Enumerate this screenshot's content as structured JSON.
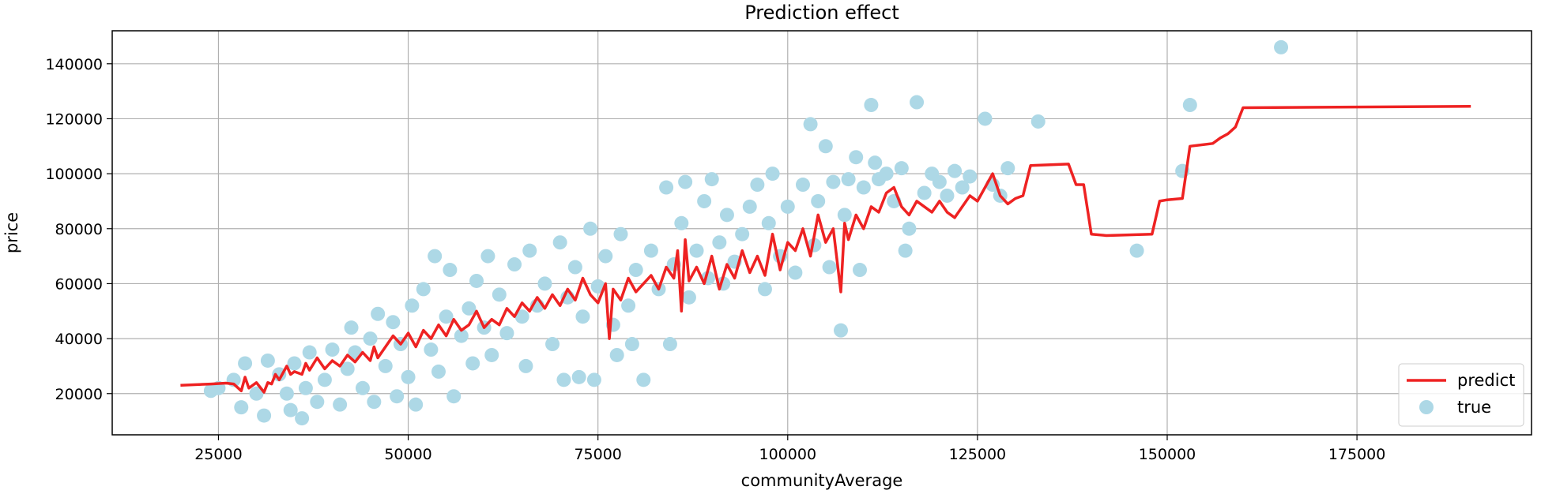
{
  "chart_data": {
    "type": "scatter",
    "title": "Prediction effect",
    "xlabel": "communityAverage",
    "ylabel": "price",
    "xlim": [
      11000,
      198000
    ],
    "ylim": [
      5000,
      152000
    ],
    "xticks": [
      25000,
      50000,
      75000,
      100000,
      125000,
      150000,
      175000
    ],
    "yticks": [
      20000,
      40000,
      60000,
      80000,
      100000,
      120000,
      140000
    ],
    "grid": true,
    "legend_position": "lower-right",
    "series": [
      {
        "name": "predict",
        "kind": "line",
        "color": "#ee2222",
        "points": [
          [
            20000,
            23000
          ],
          [
            24000,
            23500
          ],
          [
            26000,
            23800
          ],
          [
            27000,
            23500
          ],
          [
            28000,
            21000
          ],
          [
            28500,
            26000
          ],
          [
            29000,
            22000
          ],
          [
            30000,
            24000
          ],
          [
            31000,
            20500
          ],
          [
            31500,
            24000
          ],
          [
            32000,
            23500
          ],
          [
            32500,
            27000
          ],
          [
            33000,
            25000
          ],
          [
            34000,
            30000
          ],
          [
            34500,
            27000
          ],
          [
            35000,
            28000
          ],
          [
            36000,
            27000
          ],
          [
            36500,
            31000
          ],
          [
            37000,
            28500
          ],
          [
            38000,
            33000
          ],
          [
            39000,
            29000
          ],
          [
            40000,
            32000
          ],
          [
            41000,
            30000
          ],
          [
            42000,
            34000
          ],
          [
            43000,
            31500
          ],
          [
            44000,
            35000
          ],
          [
            45000,
            32000
          ],
          [
            45500,
            37000
          ],
          [
            46000,
            33000
          ],
          [
            47000,
            37000
          ],
          [
            48000,
            41000
          ],
          [
            49000,
            38000
          ],
          [
            50000,
            42000
          ],
          [
            51000,
            37000
          ],
          [
            52000,
            43000
          ],
          [
            53000,
            40000
          ],
          [
            54000,
            45000
          ],
          [
            55000,
            41000
          ],
          [
            56000,
            47000
          ],
          [
            57000,
            43000
          ],
          [
            58000,
            45000
          ],
          [
            59000,
            50000
          ],
          [
            60000,
            44000
          ],
          [
            61000,
            47000
          ],
          [
            62000,
            45000
          ],
          [
            63000,
            51000
          ],
          [
            64000,
            48000
          ],
          [
            65000,
            53000
          ],
          [
            66000,
            50000
          ],
          [
            67000,
            55000
          ],
          [
            68000,
            51000
          ],
          [
            69000,
            56000
          ],
          [
            70000,
            52000
          ],
          [
            71000,
            58000
          ],
          [
            72000,
            54000
          ],
          [
            73000,
            62000
          ],
          [
            74000,
            56000
          ],
          [
            75000,
            53000
          ],
          [
            76000,
            60000
          ],
          [
            76500,
            40000
          ],
          [
            77000,
            58000
          ],
          [
            78000,
            54000
          ],
          [
            79000,
            62000
          ],
          [
            80000,
            57000
          ],
          [
            81000,
            60000
          ],
          [
            82000,
            63000
          ],
          [
            83000,
            58000
          ],
          [
            84000,
            66000
          ],
          [
            85000,
            62000
          ],
          [
            85500,
            72000
          ],
          [
            86000,
            50000
          ],
          [
            86500,
            76000
          ],
          [
            87000,
            61000
          ],
          [
            88000,
            66000
          ],
          [
            89000,
            60000
          ],
          [
            90000,
            70000
          ],
          [
            91000,
            58000
          ],
          [
            92000,
            67000
          ],
          [
            93000,
            62000
          ],
          [
            94000,
            72000
          ],
          [
            95000,
            64000
          ],
          [
            96000,
            70000
          ],
          [
            97000,
            63000
          ],
          [
            98000,
            78000
          ],
          [
            99000,
            65000
          ],
          [
            100000,
            75000
          ],
          [
            101000,
            72000
          ],
          [
            102000,
            80000
          ],
          [
            103000,
            70000
          ],
          [
            104000,
            85000
          ],
          [
            105000,
            75000
          ],
          [
            106000,
            80000
          ],
          [
            107000,
            57000
          ],
          [
            107500,
            82000
          ],
          [
            108000,
            76000
          ],
          [
            109000,
            85000
          ],
          [
            110000,
            80000
          ],
          [
            111000,
            88000
          ],
          [
            112000,
            86000
          ],
          [
            113000,
            93000
          ],
          [
            114000,
            95000
          ],
          [
            115000,
            88000
          ],
          [
            116000,
            85000
          ],
          [
            117000,
            90000
          ],
          [
            118000,
            88000
          ],
          [
            119000,
            86000
          ],
          [
            120000,
            90000
          ],
          [
            121000,
            86000
          ],
          [
            122000,
            84000
          ],
          [
            123000,
            88000
          ],
          [
            124000,
            92000
          ],
          [
            125000,
            90000
          ],
          [
            126000,
            95000
          ],
          [
            127000,
            100000
          ],
          [
            128000,
            92000
          ],
          [
            129000,
            89000
          ],
          [
            130000,
            91000
          ],
          [
            131000,
            92000
          ],
          [
            132000,
            103000
          ],
          [
            137000,
            103500
          ],
          [
            138000,
            96000
          ],
          [
            139000,
            96000
          ],
          [
            140000,
            78000
          ],
          [
            142000,
            77500
          ],
          [
            148000,
            78000
          ],
          [
            149000,
            90000
          ],
          [
            150000,
            90500
          ],
          [
            152000,
            91000
          ],
          [
            153000,
            110000
          ],
          [
            156000,
            111000
          ],
          [
            157000,
            113000
          ],
          [
            158000,
            114500
          ],
          [
            159000,
            117000
          ],
          [
            160000,
            124000
          ],
          [
            190000,
            124500
          ]
        ]
      },
      {
        "name": "true",
        "kind": "scatter",
        "color": "#add8e6",
        "points": [
          [
            24000,
            21000
          ],
          [
            25000,
            22000
          ],
          [
            27000,
            25000
          ],
          [
            28000,
            15000
          ],
          [
            28500,
            31000
          ],
          [
            30000,
            20000
          ],
          [
            31000,
            12000
          ],
          [
            31500,
            32000
          ],
          [
            33000,
            27000
          ],
          [
            34000,
            20000
          ],
          [
            34500,
            14000
          ],
          [
            35000,
            31000
          ],
          [
            36000,
            11000
          ],
          [
            36500,
            22000
          ],
          [
            37000,
            35000
          ],
          [
            38000,
            17000
          ],
          [
            39000,
            25000
          ],
          [
            40000,
            36000
          ],
          [
            41000,
            16000
          ],
          [
            42000,
            29000
          ],
          [
            42500,
            44000
          ],
          [
            43000,
            35000
          ],
          [
            44000,
            22000
          ],
          [
            45000,
            40000
          ],
          [
            45500,
            17000
          ],
          [
            46000,
            49000
          ],
          [
            47000,
            30000
          ],
          [
            48000,
            46000
          ],
          [
            48500,
            19000
          ],
          [
            49000,
            38000
          ],
          [
            50000,
            26000
          ],
          [
            50500,
            52000
          ],
          [
            51000,
            16000
          ],
          [
            52000,
            58000
          ],
          [
            53000,
            36000
          ],
          [
            53500,
            70000
          ],
          [
            54000,
            28000
          ],
          [
            55000,
            48000
          ],
          [
            55500,
            65000
          ],
          [
            56000,
            19000
          ],
          [
            57000,
            41000
          ],
          [
            58000,
            51000
          ],
          [
            58500,
            31000
          ],
          [
            59000,
            61000
          ],
          [
            60000,
            44000
          ],
          [
            60500,
            70000
          ],
          [
            61000,
            34000
          ],
          [
            62000,
            56000
          ],
          [
            63000,
            42000
          ],
          [
            64000,
            67000
          ],
          [
            65000,
            48000
          ],
          [
            65500,
            30000
          ],
          [
            66000,
            72000
          ],
          [
            67000,
            52000
          ],
          [
            68000,
            60000
          ],
          [
            69000,
            38000
          ],
          [
            70000,
            75000
          ],
          [
            70500,
            25000
          ],
          [
            71000,
            55000
          ],
          [
            72000,
            66000
          ],
          [
            72500,
            26000
          ],
          [
            73000,
            48000
          ],
          [
            74000,
            80000
          ],
          [
            74500,
            25000
          ],
          [
            75000,
            59000
          ],
          [
            76000,
            70000
          ],
          [
            77000,
            45000
          ],
          [
            77500,
            34000
          ],
          [
            78000,
            78000
          ],
          [
            79000,
            52000
          ],
          [
            79500,
            38000
          ],
          [
            80000,
            65000
          ],
          [
            81000,
            25000
          ],
          [
            82000,
            72000
          ],
          [
            83000,
            58000
          ],
          [
            84000,
            95000
          ],
          [
            84500,
            38000
          ],
          [
            85000,
            67000
          ],
          [
            86000,
            82000
          ],
          [
            86500,
            97000
          ],
          [
            87000,
            55000
          ],
          [
            88000,
            72000
          ],
          [
            89000,
            90000
          ],
          [
            89500,
            62000
          ],
          [
            90000,
            98000
          ],
          [
            91000,
            75000
          ],
          [
            91500,
            60000
          ],
          [
            92000,
            85000
          ],
          [
            93000,
            68000
          ],
          [
            94000,
            78000
          ],
          [
            95000,
            88000
          ],
          [
            96000,
            96000
          ],
          [
            97000,
            58000
          ],
          [
            97500,
            82000
          ],
          [
            98000,
            100000
          ],
          [
            99000,
            70000
          ],
          [
            100000,
            88000
          ],
          [
            101000,
            64000
          ],
          [
            102000,
            96000
          ],
          [
            103000,
            118000
          ],
          [
            103500,
            74000
          ],
          [
            104000,
            90000
          ],
          [
            105000,
            110000
          ],
          [
            105500,
            66000
          ],
          [
            106000,
            97000
          ],
          [
            107000,
            43000
          ],
          [
            107500,
            85000
          ],
          [
            108000,
            98000
          ],
          [
            109000,
            106000
          ],
          [
            109500,
            65000
          ],
          [
            110000,
            95000
          ],
          [
            111000,
            125000
          ],
          [
            111500,
            104000
          ],
          [
            112000,
            98000
          ],
          [
            113000,
            100000
          ],
          [
            114000,
            90000
          ],
          [
            115000,
            102000
          ],
          [
            115500,
            72000
          ],
          [
            116000,
            80000
          ],
          [
            117000,
            126000
          ],
          [
            118000,
            93000
          ],
          [
            119000,
            100000
          ],
          [
            120000,
            97000
          ],
          [
            121000,
            92000
          ],
          [
            122000,
            101000
          ],
          [
            123000,
            95000
          ],
          [
            124000,
            99000
          ],
          [
            126000,
            120000
          ],
          [
            127000,
            96000
          ],
          [
            128000,
            92000
          ],
          [
            129000,
            102000
          ],
          [
            133000,
            119000
          ],
          [
            146000,
            72000
          ],
          [
            152000,
            101000
          ],
          [
            153000,
            125000
          ],
          [
            165000,
            146000
          ]
        ]
      }
    ]
  }
}
